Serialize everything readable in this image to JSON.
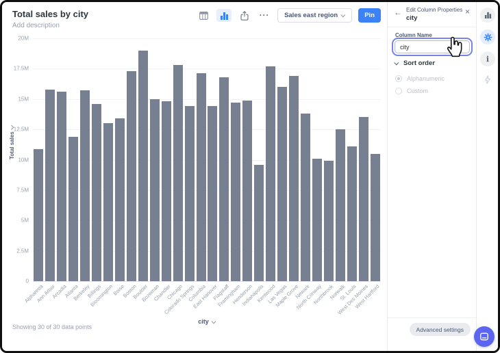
{
  "header": {
    "title": "Total sales by city",
    "description_placeholder": "Add description"
  },
  "toolbar": {
    "ellipsis_icon": "···",
    "dataset_label": "Sales east region",
    "pin_label": "Pin"
  },
  "chart_data": {
    "type": "bar",
    "title": "Total sales by city",
    "xlabel": "city",
    "ylabel": "Total sales",
    "unit": "millions",
    "ylim": [
      0,
      20
    ],
    "yticks": [
      "20M",
      "17.5M",
      "15M",
      "12.5M",
      "10M",
      "7.5M",
      "5M",
      "2.5M",
      "0"
    ],
    "grid": true,
    "legend": false,
    "bar_color": "#778091",
    "categories": [
      "Alpharetta",
      "Ann Arbor",
      "Arcadia",
      "Atlanta",
      "Berkeley",
      "Billings",
      "Bloomington",
      "Boise",
      "Boston",
      "Boulder",
      "Bozeman",
      "Chandler",
      "Chicago",
      "Colorado Springs",
      "Columbia",
      "East Hanover",
      "Flagstaff",
      "Framingham",
      "Henderson",
      "Indianapolis",
      "Kentwood",
      "Las Vegas",
      "Maple Grove",
      "Newark",
      "North Conway",
      "Northbrook",
      "Norwalk",
      "St. Louis",
      "West Des Moines",
      "West Hartford"
    ],
    "values": [
      10.9,
      15.8,
      15.6,
      11.9,
      15.7,
      14.6,
      13.0,
      13.4,
      17.3,
      19.0,
      15.0,
      14.8,
      17.8,
      14.4,
      17.1,
      14.4,
      16.8,
      14.7,
      14.9,
      9.6,
      17.7,
      16.0,
      16.9,
      13.8,
      10.1,
      9.9,
      12.5,
      11.1,
      13.5,
      10.5
    ]
  },
  "footer": {
    "showing_text": "Showing 30 of 30 data points"
  },
  "panel": {
    "back_icon": "←",
    "title": "Edit Column Properties",
    "subtitle": "city",
    "close_icon": "×",
    "column_name_label": "Column Name",
    "column_name_value": "city",
    "sort_order_label": "Sort order",
    "sort_options": [
      {
        "label": "Alphanumeric",
        "selected": true
      },
      {
        "label": "Custom",
        "selected": false
      }
    ],
    "advanced_button_label": "Advanced settings"
  },
  "icon_strip": {
    "icons": [
      "chart-icon",
      "settings-gear-icon",
      "info-icon",
      "bolt-icon"
    ],
    "active": "settings-gear-icon"
  },
  "colors": {
    "accent_blue": "#3b82f6",
    "focus_ring": "#7584e6",
    "bar": "#778091",
    "gear_blue": "#4285f4",
    "chat_bubble": "#5c65f1"
  }
}
